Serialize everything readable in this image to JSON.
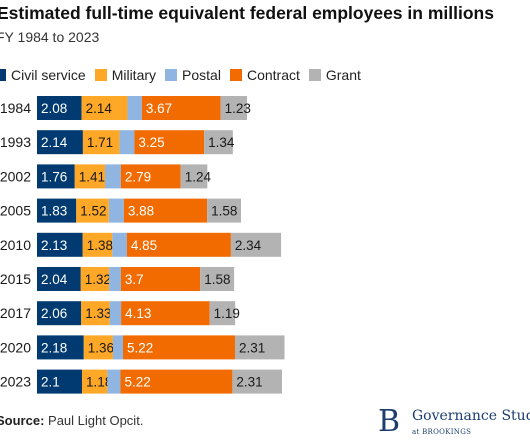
{
  "chart_data": {
    "type": "bar",
    "orientation": "horizontal",
    "stacked": true,
    "title": "Estimated full-time equivalent federal employees in millions",
    "subtitle": "FY 1984 to 2023",
    "legend_position": "top-left",
    "grid": false,
    "categories": [
      "1984",
      "1993",
      "2002",
      "2005",
      "2010",
      "2015",
      "2017",
      "2020",
      "2023"
    ],
    "series": [
      {
        "name": "Civil service",
        "color": "#003a70",
        "text_color": "#ffffff",
        "values": [
          2.08,
          2.14,
          1.76,
          1.83,
          2.13,
          2.04,
          2.06,
          2.18,
          2.1
        ],
        "labels": [
          "2.08",
          "2.14",
          "1.76",
          "1.83",
          "2.13",
          "2.04",
          "2.06",
          "2.18",
          "2.1"
        ]
      },
      {
        "name": "Military",
        "color": "#ffa726",
        "text_color": "#1a1a1a",
        "values": [
          2.14,
          1.71,
          1.41,
          1.52,
          1.38,
          1.32,
          1.33,
          1.36,
          1.18
        ],
        "labels": [
          "2.14",
          "1.71",
          "1.41",
          "1.52",
          "1.38",
          "1.32",
          "1.33",
          "1.36",
          "1.18"
        ]
      },
      {
        "name": "Postal",
        "color": "#8fb5e0",
        "text_color": "#1a1a1a",
        "values": [
          0.67,
          0.69,
          0.74,
          0.7,
          0.68,
          0.55,
          0.53,
          0.47,
          0.61
        ],
        "labels": [
          "",
          "",
          "",
          "",
          "",
          "",
          "",
          "",
          ""
        ]
      },
      {
        "name": "Contract",
        "color": "#f26b00",
        "text_color": "#ffffff",
        "values": [
          3.67,
          3.25,
          2.79,
          3.88,
          4.85,
          3.7,
          4.13,
          5.22,
          5.22
        ],
        "labels": [
          "3.67",
          "3.25",
          "2.79",
          "3.88",
          "4.85",
          "3.7",
          "4.13",
          "5.22",
          "5.22"
        ]
      },
      {
        "name": "Grant",
        "color": "#b3b3b3",
        "text_color": "#1a1a1a",
        "values": [
          1.23,
          1.34,
          1.24,
          1.58,
          2.34,
          1.58,
          1.19,
          2.31,
          2.31
        ],
        "labels": [
          "1.23",
          "1.34",
          "1.24",
          "1.58",
          "2.34",
          "1.58",
          "1.19",
          "2.31",
          "2.31"
        ]
      }
    ]
  },
  "source": {
    "label": "Source:",
    "text": "Paul Light Opcit."
  },
  "logo": {
    "mark": "B",
    "name": "Governance Studies",
    "sub": "at BROOKINGS"
  }
}
